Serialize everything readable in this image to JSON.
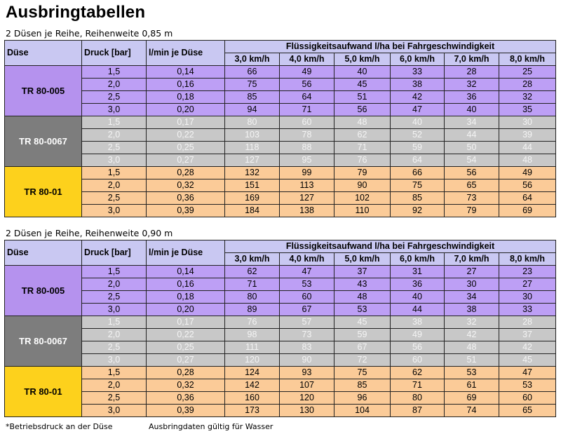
{
  "title": "Ausbringtabellen",
  "header": {
    "nozzle": "Düse",
    "pressure": "Druck [bar]",
    "flow": "l/min je Düse",
    "rate_group": "Flüssigkeitsaufwand l/ha bei Fahrgeschwindigkeit",
    "speeds": [
      "3,0 km/h",
      "4,0 km/h",
      "5,0 km/h",
      "6,0 km/h",
      "7,0 km/h",
      "8,0 km/h"
    ]
  },
  "colors": {
    "header": "#c9c8f2",
    "purple": "#bd9ff5",
    "gray": "#c8c8c8",
    "gray_nozzle": "#7d7d7d",
    "orange": "#fbcb98",
    "yellow_nozzle": "#fdd11c"
  },
  "tables": [
    {
      "subtitle": "2 Düsen je Reihe, Reihenweite 0,85 m",
      "groups": [
        {
          "nozzle": "TR 80-005",
          "color": "purple",
          "rows": [
            {
              "pressure": "1,5",
              "flow": "0,14",
              "rates": [
                "66",
                "49",
                "40",
                "33",
                "28",
                "25"
              ]
            },
            {
              "pressure": "2,0",
              "flow": "0,16",
              "rates": [
                "75",
                "56",
                "45",
                "38",
                "32",
                "28"
              ]
            },
            {
              "pressure": "2,5",
              "flow": "0,18",
              "rates": [
                "85",
                "64",
                "51",
                "42",
                "36",
                "32"
              ]
            },
            {
              "pressure": "3,0",
              "flow": "0,20",
              "rates": [
                "94",
                "71",
                "56",
                "47",
                "40",
                "35"
              ]
            }
          ]
        },
        {
          "nozzle": "TR 80-0067",
          "color": "gray",
          "rows": [
            {
              "pressure": "1,5",
              "flow": "0,17",
              "rates": [
                "80",
                "60",
                "48",
                "40",
                "34",
                "30"
              ]
            },
            {
              "pressure": "2,0",
              "flow": "0,22",
              "rates": [
                "103",
                "78",
                "62",
                "52",
                "44",
                "39"
              ]
            },
            {
              "pressure": "2,5",
              "flow": "0,25",
              "rates": [
                "118",
                "88",
                "71",
                "59",
                "50",
                "44"
              ]
            },
            {
              "pressure": "3,0",
              "flow": "0,27",
              "rates": [
                "127",
                "95",
                "76",
                "64",
                "54",
                "48"
              ]
            }
          ]
        },
        {
          "nozzle": "TR 80-01",
          "color": "orange",
          "rows": [
            {
              "pressure": "1,5",
              "flow": "0,28",
              "rates": [
                "132",
                "99",
                "79",
                "66",
                "56",
                "49"
              ]
            },
            {
              "pressure": "2,0",
              "flow": "0,32",
              "rates": [
                "151",
                "113",
                "90",
                "75",
                "65",
                "56"
              ]
            },
            {
              "pressure": "2,5",
              "flow": "0,36",
              "rates": [
                "169",
                "127",
                "102",
                "85",
                "73",
                "64"
              ]
            },
            {
              "pressure": "3,0",
              "flow": "0,39",
              "rates": [
                "184",
                "138",
                "110",
                "92",
                "79",
                "69"
              ]
            }
          ]
        }
      ]
    },
    {
      "subtitle": "2 Düsen je Reihe, Reihenweite 0,90 m",
      "groups": [
        {
          "nozzle": "TR 80-005",
          "color": "purple",
          "rows": [
            {
              "pressure": "1,5",
              "flow": "0,14",
              "rates": [
                "62",
                "47",
                "37",
                "31",
                "27",
                "23"
              ]
            },
            {
              "pressure": "2,0",
              "flow": "0,16",
              "rates": [
                "71",
                "53",
                "43",
                "36",
                "30",
                "27"
              ]
            },
            {
              "pressure": "2,5",
              "flow": "0,18",
              "rates": [
                "80",
                "60",
                "48",
                "40",
                "34",
                "30"
              ]
            },
            {
              "pressure": "3,0",
              "flow": "0,20",
              "rates": [
                "89",
                "67",
                "53",
                "44",
                "38",
                "33"
              ]
            }
          ]
        },
        {
          "nozzle": "TR 80-0067",
          "color": "gray",
          "rows": [
            {
              "pressure": "1,5",
              "flow": "0,17",
              "rates": [
                "76",
                "57",
                "45",
                "38",
                "32",
                "28"
              ]
            },
            {
              "pressure": "2,0",
              "flow": "0,22",
              "rates": [
                "98",
                "73",
                "59",
                "49",
                "42",
                "37"
              ]
            },
            {
              "pressure": "2,5",
              "flow": "0,25",
              "rates": [
                "111",
                "83",
                "67",
                "56",
                "48",
                "42"
              ]
            },
            {
              "pressure": "3,0",
              "flow": "0,27",
              "rates": [
                "120",
                "90",
                "72",
                "60",
                "51",
                "45"
              ]
            }
          ]
        },
        {
          "nozzle": "TR 80-01",
          "color": "orange",
          "rows": [
            {
              "pressure": "1,5",
              "flow": "0,28",
              "rates": [
                "124",
                "93",
                "75",
                "62",
                "53",
                "47"
              ]
            },
            {
              "pressure": "2,0",
              "flow": "0,32",
              "rates": [
                "142",
                "107",
                "85",
                "71",
                "61",
                "53"
              ]
            },
            {
              "pressure": "2,5",
              "flow": "0,36",
              "rates": [
                "160",
                "120",
                "96",
                "80",
                "69",
                "60"
              ]
            },
            {
              "pressure": "3,0",
              "flow": "0,39",
              "rates": [
                "173",
                "130",
                "104",
                "87",
                "74",
                "65"
              ]
            }
          ]
        }
      ]
    }
  ],
  "footer": {
    "note1": "*Betriebsdruck an der Düse",
    "note2": "Ausbringdaten gültig für Wasser"
  }
}
